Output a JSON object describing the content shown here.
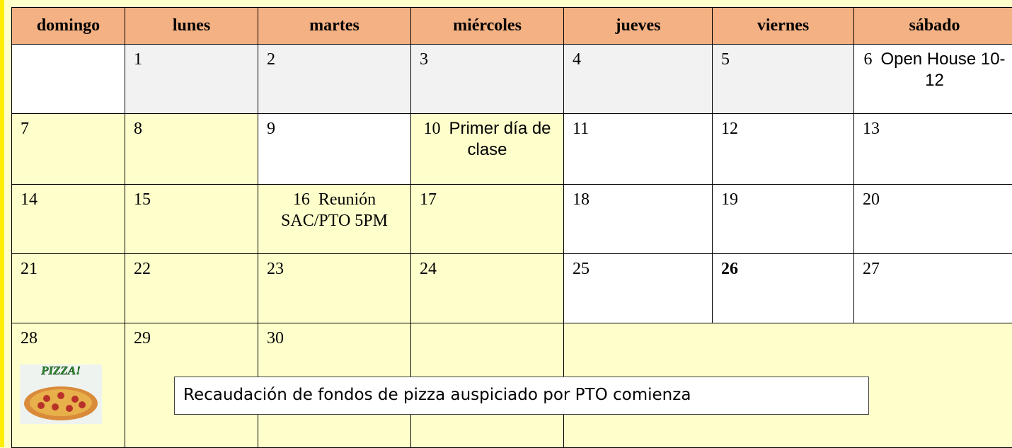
{
  "table": {
    "headers": [
      "domingo",
      "lunes",
      "martes",
      "miércoles",
      "jueves",
      "viernes",
      "sábado"
    ],
    "rows": [
      [
        null,
        {
          "day": "1"
        },
        {
          "day": "2"
        },
        {
          "day": "3"
        },
        {
          "day": "4"
        },
        {
          "day": "5"
        },
        {
          "day": "6",
          "note": "Open House 10-12"
        }
      ],
      [
        {
          "day": "7"
        },
        {
          "day": "8"
        },
        {
          "day": "9"
        },
        {
          "day": "10",
          "note": "Primer día de clase"
        },
        {
          "day": "11"
        },
        {
          "day": "12"
        },
        {
          "day": "13"
        }
      ],
      [
        {
          "day": "14"
        },
        {
          "day": "15"
        },
        {
          "day": "16",
          "note": "Reunión SAC/PTO 5PM"
        },
        {
          "day": "17"
        },
        {
          "day": "18"
        },
        {
          "day": "19"
        },
        {
          "day": "20"
        }
      ],
      [
        {
          "day": "21"
        },
        {
          "day": "22"
        },
        {
          "day": "23"
        },
        {
          "day": "24"
        },
        {
          "day": "25"
        },
        {
          "day": "26"
        },
        {
          "day": "27"
        }
      ],
      [
        {
          "day": "28"
        },
        {
          "day": "29"
        },
        {
          "day": "30"
        },
        null,
        null
      ]
    ],
    "pizza_label": "PIZZA!",
    "banner": "Recaudación de fondos de pizza auspiciado por PTO comienza"
  }
}
